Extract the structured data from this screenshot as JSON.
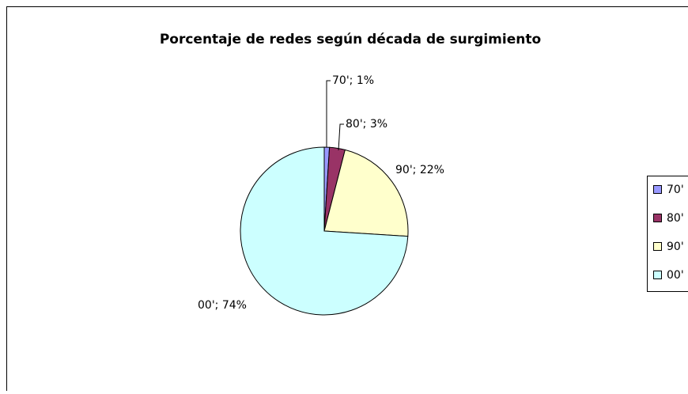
{
  "chart_data": {
    "type": "pie",
    "title": "Porcentaje de redes según década de surgimiento",
    "categories": [
      "70'",
      "80'",
      "90'",
      "00'"
    ],
    "values": [
      1,
      3,
      22,
      74
    ],
    "value_labels": [
      "70'; 1%",
      "80'; 3%",
      "90'; 22%",
      "00'; 74%"
    ],
    "colors": [
      "#9999ff",
      "#993366",
      "#ffffcc",
      "#ccffff"
    ],
    "legend": "right"
  }
}
